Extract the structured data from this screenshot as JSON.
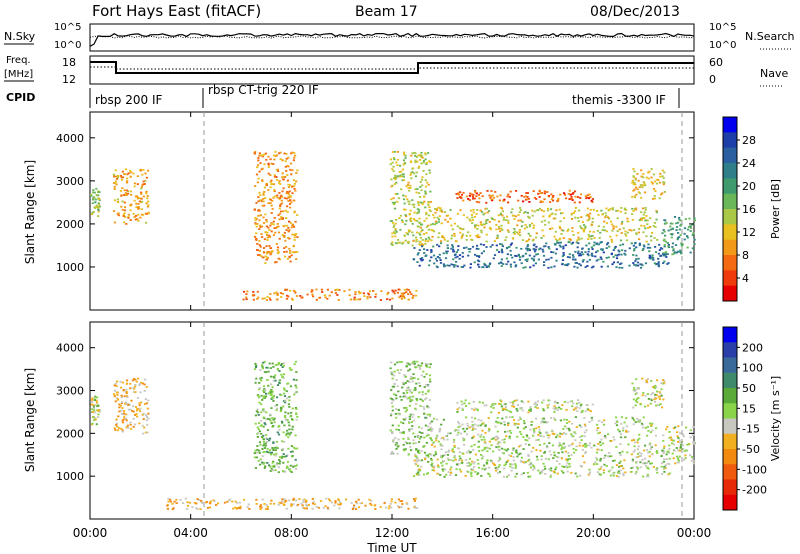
{
  "header": {
    "title": "Fort Hays East (fitACF)",
    "beam": "Beam 17",
    "date": "08/Dec/2013"
  },
  "status_panel": {
    "nsky_label": "N.Sky",
    "nsearch_label": "N.Search",
    "nsky_ticks": [
      "10^5",
      "10^0"
    ],
    "nsearch_ticks": [
      "10^5",
      "10^0"
    ],
    "freq_label": "Freq.",
    "freq_unit": "[MHz]",
    "freq_ticks": [
      "18",
      "12"
    ],
    "nave_label": "Nave",
    "nave_ticks": [
      "60",
      "0"
    ],
    "cpid_label": "CPID",
    "cpid_segments": [
      "rbsp 200 IF",
      "rbsp CT-trig 220 IF",
      "themis -3300 IF"
    ]
  },
  "chart_data": [
    {
      "type": "heatmap",
      "panel": "power",
      "ylabel": "Slant Range [km]",
      "ylim": [
        0,
        4600
      ],
      "yticks": [
        1000,
        2000,
        3000,
        4000
      ],
      "xlim": [
        0,
        24
      ],
      "colorbar": {
        "label": "Power [dB]",
        "range": [
          0,
          32
        ],
        "ticks": [
          "28",
          "24",
          "20",
          "16",
          "12",
          "8",
          "4"
        ],
        "colors": [
          "#0000ee",
          "#1f3fa8",
          "#2a5fa0",
          "#2f7f8a",
          "#3f9a6e",
          "#6ab75a",
          "#a8c846",
          "#e8c020",
          "#f29a18",
          "#f46a10",
          "#ef3a0c",
          "#e60000"
        ]
      },
      "scatter_regions": [
        {
          "t": [
            0.0,
            0.35
          ],
          "r": [
            2200,
            2900
          ],
          "v": 16
        },
        {
          "t": [
            0.9,
            2.3
          ],
          "r": [
            2000,
            3300
          ],
          "v": 10
        },
        {
          "t": [
            6.5,
            8.2
          ],
          "r": [
            1100,
            3700
          ],
          "v": 9
        },
        {
          "t": [
            11.9,
            13.5
          ],
          "r": [
            1500,
            3700
          ],
          "v": 14
        },
        {
          "t": [
            12.8,
            23.0
          ],
          "r": [
            1000,
            1600
          ],
          "v": 24
        },
        {
          "t": [
            13.5,
            22.5
          ],
          "r": [
            1600,
            2400
          ],
          "v": 13
        },
        {
          "t": [
            14.5,
            20.0
          ],
          "r": [
            2500,
            2800
          ],
          "v": 6
        },
        {
          "t": [
            21.5,
            22.8
          ],
          "r": [
            2600,
            3300
          ],
          "v": 12
        },
        {
          "t": [
            22.7,
            24.0
          ],
          "r": [
            1300,
            2200
          ],
          "v": 20
        },
        {
          "t": [
            6.0,
            13.0
          ],
          "r": [
            250,
            500
          ],
          "v": 8
        }
      ]
    },
    {
      "type": "heatmap",
      "panel": "velocity",
      "ylabel": "Slant Range [km]",
      "xlabel": "Time UT",
      "ylim": [
        0,
        4600
      ],
      "yticks": [
        1000,
        2000,
        3000,
        4000
      ],
      "xlim": [
        0,
        24
      ],
      "xticks": [
        "00:00",
        "04:00",
        "08:00",
        "12:00",
        "16:00",
        "20:00",
        "00:00"
      ],
      "colorbar": {
        "label": "Velocity [m s⁻¹]",
        "range": [
          -250,
          250
        ],
        "ticks": [
          "200",
          "100",
          "50",
          "15",
          "-15",
          "-50",
          "-100",
          "-200"
        ],
        "colors": [
          "#0000ee",
          "#2a3fa8",
          "#3a6a9a",
          "#3f8a6a",
          "#5aaa3a",
          "#8ad44a",
          "#c8c8c0",
          "#f2b020",
          "#f28a10",
          "#f05a0c",
          "#e62a08",
          "#e60000"
        ]
      },
      "scatter_regions": [
        {
          "t": [
            0.0,
            0.35
          ],
          "r": [
            2200,
            2900
          ],
          "v": -5
        },
        {
          "t": [
            0.9,
            2.3
          ],
          "r": [
            2000,
            3300
          ],
          "v": -60
        },
        {
          "t": [
            6.5,
            8.2
          ],
          "r": [
            1100,
            3700
          ],
          "v": 40
        },
        {
          "t": [
            11.9,
            13.5
          ],
          "r": [
            1500,
            3700
          ],
          "v": 25
        },
        {
          "t": [
            12.8,
            23.0
          ],
          "r": [
            1000,
            1600
          ],
          "v": 0
        },
        {
          "t": [
            13.5,
            22.5
          ],
          "r": [
            1600,
            2400
          ],
          "v": 0
        },
        {
          "t": [
            14.5,
            20.0
          ],
          "r": [
            2500,
            2800
          ],
          "v": 0
        },
        {
          "t": [
            21.5,
            22.8
          ],
          "r": [
            2600,
            3300
          ],
          "v": -10
        },
        {
          "t": [
            22.7,
            24.0
          ],
          "r": [
            1300,
            2200
          ],
          "v": 0
        },
        {
          "t": [
            3.0,
            13.0
          ],
          "r": [
            250,
            500
          ],
          "v": -60
        }
      ]
    }
  ]
}
